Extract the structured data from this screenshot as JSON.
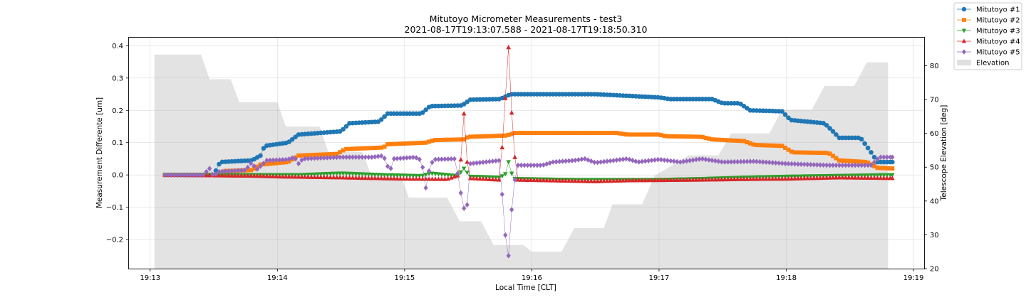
{
  "chart_data": {
    "type": "line",
    "title": "Mitutoyo Micrometer Measurements - test3",
    "subtitle": "2021-08-17T19:13:07.588 - 2021-08-17T19:18:50.310",
    "xlabel": "Local Time [CLT]",
    "ylabel": "Measurement Differente [um]",
    "y2label": "Telescope Elevation [deg]",
    "xlim": [
      "19:12:50",
      "19:19:05"
    ],
    "ylim": [
      -0.29,
      0.425
    ],
    "y2lim": [
      20,
      88.3
    ],
    "x_ticks": [
      "19:13",
      "19:14",
      "19:15",
      "19:16",
      "19:17",
      "19:18",
      "19:19"
    ],
    "y_ticks": [
      -0.2,
      -0.1,
      0.0,
      0.1,
      0.2,
      0.3,
      0.4
    ],
    "y_tick_labels": [
      "−0.2",
      "−0.1",
      "0.0",
      "0.1",
      "0.2",
      "0.3",
      "0.4"
    ],
    "y2_ticks": [
      20,
      30,
      40,
      50,
      60,
      70,
      80
    ],
    "grid": true,
    "legend_position": "top-right",
    "time_range": [
      "19:13:07",
      "19:18:50"
    ],
    "series": [
      {
        "name": "Mitutoyo #1",
        "color": "#1f77b4",
        "marker": "circle",
        "knots": [
          [
            "19:13:07",
            0.0
          ],
          [
            "19:13:30",
            0.0
          ],
          [
            "19:13:33",
            0.04
          ],
          [
            "19:13:48",
            0.045
          ],
          [
            "19:13:52",
            0.06
          ],
          [
            "19:13:54",
            0.09
          ],
          [
            "19:14:05",
            0.1
          ],
          [
            "19:14:10",
            0.125
          ],
          [
            "19:14:30",
            0.135
          ],
          [
            "19:14:34",
            0.16
          ],
          [
            "19:14:48",
            0.165
          ],
          [
            "19:14:52",
            0.19
          ],
          [
            "19:15:08",
            0.19
          ],
          [
            "19:15:12",
            0.213
          ],
          [
            "19:15:27",
            0.215
          ],
          [
            "19:15:31",
            0.233
          ],
          [
            "19:15:45",
            0.235
          ],
          [
            "19:15:50",
            0.25
          ],
          [
            "19:16:30",
            0.25
          ],
          [
            "19:16:45",
            0.245
          ],
          [
            "19:17:00",
            0.24
          ],
          [
            "19:17:05",
            0.235
          ],
          [
            "19:17:25",
            0.235
          ],
          [
            "19:17:30",
            0.222
          ],
          [
            "19:17:38",
            0.222
          ],
          [
            "19:17:43",
            0.2
          ],
          [
            "19:17:58",
            0.197
          ],
          [
            "19:18:02",
            0.17
          ],
          [
            "19:18:18",
            0.16
          ],
          [
            "19:18:22",
            0.135
          ],
          [
            "19:18:25",
            0.115
          ],
          [
            "19:18:35",
            0.115
          ],
          [
            "19:18:40",
            0.07
          ],
          [
            "19:18:43",
            0.04
          ],
          [
            "19:18:50",
            0.04
          ]
        ]
      },
      {
        "name": "Mitutoyo #2",
        "color": "#ff7f0e",
        "marker": "square",
        "knots": [
          [
            "19:13:07",
            0.0
          ],
          [
            "19:13:32",
            0.0
          ],
          [
            "19:13:35",
            0.012
          ],
          [
            "19:13:48",
            0.015
          ],
          [
            "19:13:52",
            0.032
          ],
          [
            "19:14:05",
            0.04
          ],
          [
            "19:14:10",
            0.06
          ],
          [
            "19:14:28",
            0.065
          ],
          [
            "19:14:32",
            0.08
          ],
          [
            "19:14:50",
            0.085
          ],
          [
            "19:14:52",
            0.095
          ],
          [
            "19:15:10",
            0.1
          ],
          [
            "19:15:14",
            0.108
          ],
          [
            "19:15:28",
            0.11
          ],
          [
            "19:15:30",
            0.118
          ],
          [
            "19:15:48",
            0.122
          ],
          [
            "19:15:52",
            0.13
          ],
          [
            "19:16:40",
            0.13
          ],
          [
            "19:16:45",
            0.125
          ],
          [
            "19:17:00",
            0.125
          ],
          [
            "19:17:03",
            0.12
          ],
          [
            "19:17:20",
            0.118
          ],
          [
            "19:17:25",
            0.11
          ],
          [
            "19:17:40",
            0.105
          ],
          [
            "19:17:45",
            0.093
          ],
          [
            "19:17:58",
            0.09
          ],
          [
            "19:18:03",
            0.07
          ],
          [
            "19:18:20",
            0.068
          ],
          [
            "19:18:25",
            0.045
          ],
          [
            "19:18:38",
            0.04
          ],
          [
            "19:18:43",
            0.022
          ],
          [
            "19:18:50",
            0.02
          ]
        ]
      },
      {
        "name": "Mitutoyo #3",
        "color": "#2ca02c",
        "marker": "triangle-down",
        "knots": [
          [
            "19:13:07",
            0.0
          ],
          [
            "19:13:50",
            0.0
          ],
          [
            "19:14:10",
            0.0
          ],
          [
            "19:14:30",
            0.005
          ],
          [
            "19:14:50",
            0.0
          ],
          [
            "19:15:08",
            -0.003
          ],
          [
            "19:15:12",
            0.005
          ],
          [
            "19:15:25",
            -0.003
          ],
          [
            "19:15:28",
            0.02
          ],
          [
            "19:15:31",
            -0.005
          ],
          [
            "19:15:45",
            -0.008
          ],
          [
            "19:15:48",
            0.005
          ],
          [
            "19:15:49",
            0.04
          ],
          [
            "19:15:50",
            0.01
          ],
          [
            "19:15:52",
            -0.012
          ],
          [
            "19:16:20",
            -0.015
          ],
          [
            "19:16:25",
            -0.015
          ],
          [
            "19:16:40",
            -0.015
          ],
          [
            "19:17:00",
            -0.015
          ],
          [
            "19:17:20",
            -0.012
          ],
          [
            "19:17:40",
            -0.008
          ],
          [
            "19:18:00",
            -0.005
          ],
          [
            "19:18:20",
            -0.003
          ],
          [
            "19:18:50",
            0.0
          ]
        ]
      },
      {
        "name": "Mitutoyo #4",
        "color": "#d62728",
        "marker": "triangle-up",
        "knots": [
          [
            "19:13:07",
            0.0
          ],
          [
            "19:13:50",
            -0.003
          ],
          [
            "19:14:00",
            -0.005
          ],
          [
            "19:14:30",
            -0.008
          ],
          [
            "19:15:00",
            -0.012
          ],
          [
            "19:15:20",
            -0.013
          ],
          [
            "19:15:26",
            0.0
          ],
          [
            "19:15:28",
            0.19
          ],
          [
            "19:15:30",
            -0.01
          ],
          [
            "19:15:45",
            -0.015
          ],
          [
            "19:15:47",
            0.185
          ],
          [
            "19:15:49",
            0.395
          ],
          [
            "19:15:51",
            0.125
          ],
          [
            "19:15:53",
            -0.015
          ],
          [
            "19:16:30",
            -0.02
          ],
          [
            "19:16:45",
            -0.017
          ],
          [
            "19:17:20",
            -0.015
          ],
          [
            "19:17:40",
            -0.013
          ],
          [
            "19:18:00",
            -0.012
          ],
          [
            "19:18:25",
            -0.008
          ],
          [
            "19:18:50",
            -0.01
          ]
        ]
      },
      {
        "name": "Mitutoyo #5",
        "color": "#9467bd",
        "marker": "diamond",
        "knots": [
          [
            "19:13:07",
            0.0
          ],
          [
            "19:13:25",
            0.0
          ],
          [
            "19:13:28",
            0.02
          ],
          [
            "19:13:30",
            -0.005
          ],
          [
            "19:13:32",
            0.01
          ],
          [
            "19:13:45",
            0.015
          ],
          [
            "19:13:48",
            0.04
          ],
          [
            "19:13:50",
            0.015
          ],
          [
            "19:13:55",
            0.045
          ],
          [
            "19:14:05",
            0.048
          ],
          [
            "19:14:08",
            0.055
          ],
          [
            "19:14:10",
            0.035
          ],
          [
            "19:14:12",
            0.05
          ],
          [
            "19:14:30",
            0.055
          ],
          [
            "19:14:45",
            0.055
          ],
          [
            "19:14:50",
            0.06
          ],
          [
            "19:14:53",
            0.01
          ],
          [
            "19:14:55",
            0.05
          ],
          [
            "19:15:05",
            0.055
          ],
          [
            "19:15:08",
            0.045
          ],
          [
            "19:15:10",
            -0.04
          ],
          [
            "19:15:12",
            0.03
          ],
          [
            "19:15:14",
            0.048
          ],
          [
            "19:15:24",
            0.05
          ],
          [
            "19:15:26",
            -0.04
          ],
          [
            "19:15:29",
            -0.135
          ],
          [
            "19:15:31",
            0.035
          ],
          [
            "19:15:45",
            0.045
          ],
          [
            "19:15:47",
            -0.165
          ],
          [
            "19:15:49",
            -0.25
          ],
          [
            "19:15:51",
            -0.06
          ],
          [
            "19:15:53",
            0.03
          ],
          [
            "19:16:05",
            0.03
          ],
          [
            "19:16:10",
            0.04
          ],
          [
            "19:16:20",
            0.045
          ],
          [
            "19:16:25",
            0.05
          ],
          [
            "19:16:30",
            0.038
          ],
          [
            "19:16:45",
            0.05
          ],
          [
            "19:16:50",
            0.04
          ],
          [
            "19:17:00",
            0.048
          ],
          [
            "19:17:10",
            0.04
          ],
          [
            "19:17:20",
            0.05
          ],
          [
            "19:17:30",
            0.04
          ],
          [
            "19:17:45",
            0.042
          ],
          [
            "19:18:00",
            0.035
          ],
          [
            "19:18:20",
            0.03
          ],
          [
            "19:18:40",
            0.03
          ],
          [
            "19:18:44",
            0.055
          ],
          [
            "19:18:50",
            0.055
          ]
        ]
      }
    ],
    "elevation": {
      "name": "Elevation",
      "color": "#cccccc",
      "steps": [
        [
          "19:13:02",
          83.3
        ],
        [
          "19:13:12",
          83.3
        ],
        [
          "19:13:24",
          83.3
        ],
        [
          "19:13:28",
          76.0
        ],
        [
          "19:13:38",
          76.0
        ],
        [
          "19:13:42",
          69.2
        ],
        [
          "19:13:52",
          69.2
        ],
        [
          "19:14:00",
          69.2
        ],
        [
          "19:14:04",
          62.0
        ],
        [
          "19:14:14",
          62.0
        ],
        [
          "19:14:20",
          62.0
        ],
        [
          "19:14:24",
          54.5
        ],
        [
          "19:14:40",
          54.5
        ],
        [
          "19:14:44",
          48.0
        ],
        [
          "19:14:58",
          48.0
        ],
        [
          "19:15:02",
          41.0
        ],
        [
          "19:15:14",
          41.0
        ],
        [
          "19:15:20",
          41.0
        ],
        [
          "19:15:26",
          34.0
        ],
        [
          "19:15:36",
          34.0
        ],
        [
          "19:15:42",
          27.0
        ],
        [
          "19:15:56",
          27.0
        ],
        [
          "19:16:00",
          25.0
        ],
        [
          "19:16:14",
          25.0
        ],
        [
          "19:16:20",
          32.0
        ],
        [
          "19:16:34",
          32.0
        ],
        [
          "19:16:38",
          39.0
        ],
        [
          "19:16:52",
          39.0
        ],
        [
          "19:16:58",
          47.5
        ],
        [
          "19:17:14",
          53.5
        ],
        [
          "19:17:28",
          53.5
        ],
        [
          "19:17:34",
          60.0
        ],
        [
          "19:17:52",
          60.0
        ],
        [
          "19:17:58",
          67.0
        ],
        [
          "19:18:12",
          67.0
        ],
        [
          "19:18:18",
          74.0
        ],
        [
          "19:18:32",
          74.0
        ],
        [
          "19:18:38",
          81.0
        ],
        [
          "19:18:48",
          81.0
        ]
      ]
    }
  }
}
